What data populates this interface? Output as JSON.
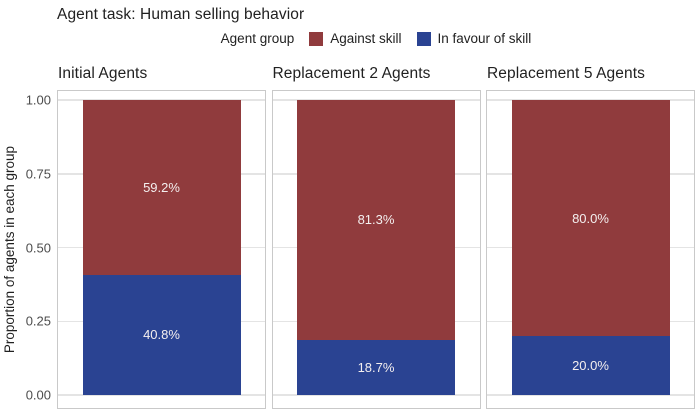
{
  "title": "Agent task: Human selling behavior",
  "legend": {
    "title": "Agent group",
    "items": [
      {
        "label": "Against skill",
        "color": "#903B3D"
      },
      {
        "label": "In favour of skill",
        "color": "#2A4392"
      }
    ]
  },
  "y_axis": {
    "title": "Proportion of agents in each group",
    "tick_labels": [
      "0.00",
      "0.25",
      "0.50",
      "0.75",
      "1.00"
    ]
  },
  "chart_data": {
    "type": "bar",
    "stacked": true,
    "title": "Agent task: Human selling behavior",
    "legend_title": "Agent group",
    "legend_position": "top",
    "facets": [
      "Initial Agents",
      "Replacement 2 Agents",
      "Replacement 5 Agents"
    ],
    "categories": [
      "Initial Agents",
      "Replacement 2 Agents",
      "Replacement 5 Agents"
    ],
    "series": [
      {
        "name": "Against skill",
        "color": "#903B3D",
        "values": [
          0.592,
          0.813,
          0.8
        ],
        "labels": [
          "59.2%",
          "81.3%",
          "80.0%"
        ]
      },
      {
        "name": "In favour of skill",
        "color": "#2A4392",
        "values": [
          0.408,
          0.187,
          0.2
        ],
        "labels": [
          "40.8%",
          "18.7%",
          "20.0%"
        ]
      }
    ],
    "ylabel": "Proportion of agents in each group",
    "xlabel": "",
    "ylim": [
      0,
      1
    ],
    "yticks": [
      0,
      0.25,
      0.5,
      0.75,
      1
    ],
    "ytick_labels": [
      "0.00",
      "0.25",
      "0.50",
      "0.75",
      "1.00"
    ],
    "grid": true,
    "bar_label_color": "#f4efef"
  }
}
